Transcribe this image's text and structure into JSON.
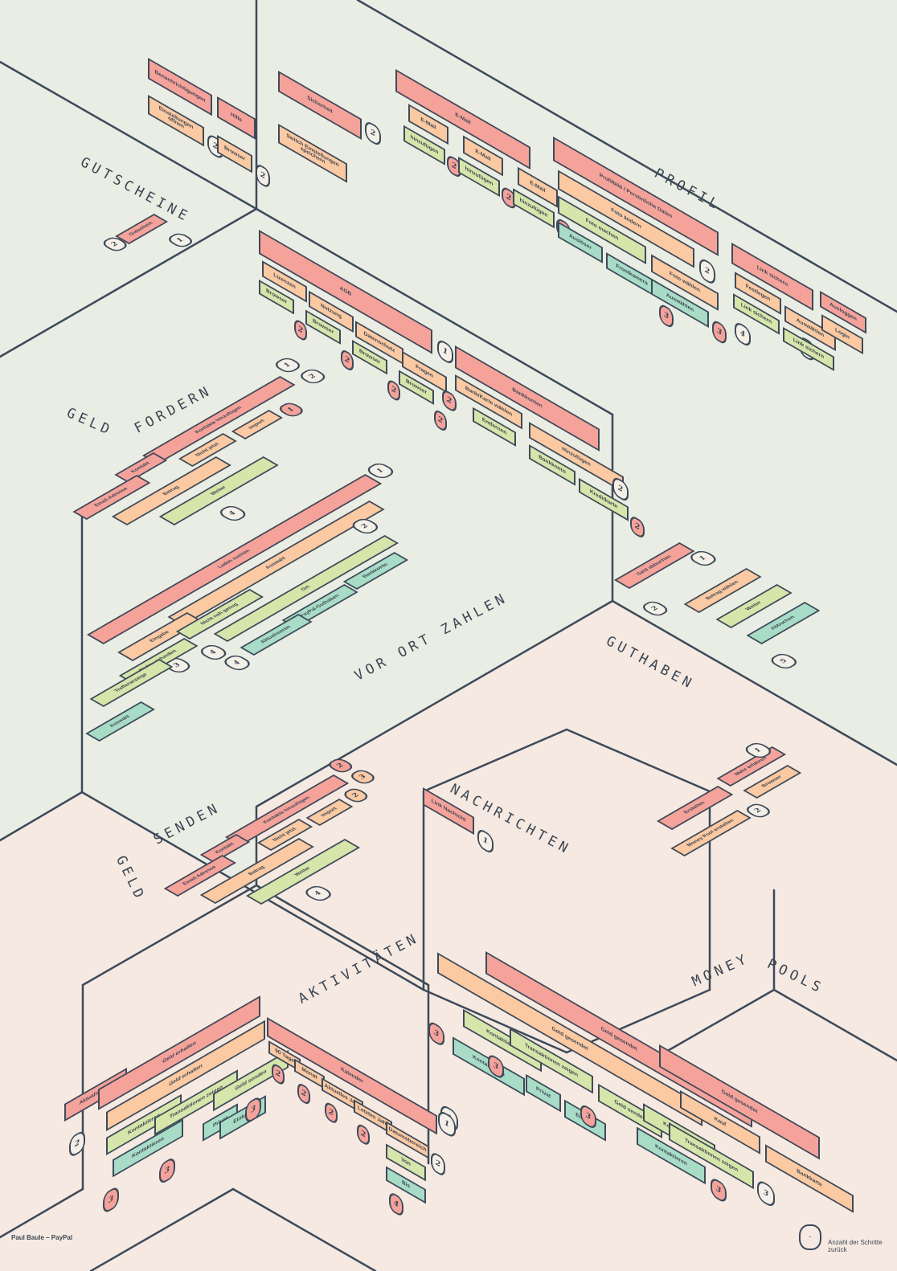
{
  "colors": {
    "bg_top": "#e9ede4",
    "bg_bottom": "#f5e9e2",
    "line": "#3d4a59",
    "salmon": "#f5a29b",
    "peach": "#fbc9a2",
    "green": "#d6e5aa",
    "teal": "#a8dcc7",
    "cream": "#f4f0e8",
    "text": "#3b4652"
  },
  "zones": {
    "gutscheine": "GUTSCHEINE",
    "profil": "PROFIL",
    "geld_fordern_1": "GELD",
    "geld_fordern_2": "FORDERN",
    "vor_ort_zahlen": "VOR ORT ZAHLEN",
    "guthaben": "GUTHABEN",
    "geld_senden_1": "GELD",
    "geld_senden_2": "SENDEN",
    "nachrichten": "NACHRICHTEN",
    "aktivitaeten": "AKTIVITÄTEN",
    "money_pools_1": "MONEY",
    "money_pools_2": "POOLS"
  },
  "footer": {
    "credit": "Paul Baule – PayPal",
    "legend_badge": "-",
    "legend_label": "Anzahl der Schritte zurück"
  },
  "groups": {
    "benachrichtigungen": {
      "items": [
        {
          "label": "Benachrichtigungen",
          "color": "salmon",
          "kind": "box"
        },
        {
          "label": "Einstellungen öffnen",
          "color": "peach",
          "kind": "box"
        },
        {
          "label": "2",
          "color": "cream",
          "kind": "badge"
        }
      ]
    },
    "hilfe": {
      "items": [
        {
          "label": "Hilfe",
          "color": "salmon",
          "kind": "box"
        },
        {
          "label": "Browser",
          "color": "peach",
          "kind": "box"
        },
        {
          "label": "2",
          "color": "cream",
          "kind": "badge"
        }
      ]
    },
    "sicherheit": {
      "items": [
        {
          "label": "Sicherheit",
          "color": "salmon",
          "kind": "box"
        },
        {
          "label": "Switch Einstellungen speichern",
          "color": "peach",
          "kind": "box"
        },
        {
          "label": "2",
          "color": "cream",
          "kind": "badge"
        }
      ]
    },
    "gutschein": {
      "items": [
        {
          "label": "2",
          "color": "cream",
          "kind": "badge"
        },
        {
          "label": "Gutschein",
          "color": "salmon",
          "kind": "box"
        },
        {
          "label": "1",
          "color": "cream",
          "kind": "badge"
        }
      ]
    },
    "profil_email": {
      "items": [
        {
          "label": "E-Mail",
          "color": "salmon",
          "kind": "box"
        },
        {
          "label": "E-Mail",
          "color": "peach",
          "kind": "box"
        },
        {
          "label": "hinzufügen",
          "color": "green",
          "kind": "box"
        },
        {
          "label": "2",
          "color": "salmon",
          "kind": "badge"
        },
        {
          "label": "E-Mail",
          "color": "peach",
          "kind": "box"
        },
        {
          "label": "hinzufügen",
          "color": "green",
          "kind": "box"
        },
        {
          "label": "2",
          "color": "salmon",
          "kind": "badge"
        },
        {
          "label": "E-Mail",
          "color": "peach",
          "kind": "box"
        },
        {
          "label": "hinzufügen",
          "color": "green",
          "kind": "box"
        },
        {
          "label": "2",
          "color": "salmon",
          "kind": "badge"
        }
      ]
    },
    "profil_daten": {
      "items": [
        {
          "label": "Profilbild / Persönliche Daten",
          "color": "salmon",
          "kind": "box"
        },
        {
          "label": "Foto ändern",
          "color": "peach",
          "kind": "box"
        },
        {
          "label": "2",
          "color": "cream",
          "kind": "badge"
        },
        {
          "label": "Foto machen",
          "color": "green",
          "kind": "box"
        },
        {
          "label": "Foto wählen",
          "color": "peach",
          "kind": "box"
        },
        {
          "label": "Auslöser",
          "color": "teal",
          "kind": "box"
        },
        {
          "label": "Frontkamera",
          "color": "teal",
          "kind": "box"
        },
        {
          "label": "3",
          "color": "salmon",
          "kind": "badge"
        },
        {
          "label": "Auswählen",
          "color": "teal",
          "kind": "box"
        },
        {
          "label": "3",
          "color": "salmon",
          "kind": "badge"
        }
      ]
    },
    "profil_link": {
      "items": [
        {
          "label": "Link sichern",
          "color": "salmon",
          "kind": "box"
        },
        {
          "label": "Festlegen",
          "color": "peach",
          "kind": "box"
        },
        {
          "label": "Auswählen",
          "color": "peach",
          "kind": "box"
        },
        {
          "label": "2",
          "color": "cream",
          "kind": "badge"
        },
        {
          "label": "Link sichern",
          "color": "green",
          "kind": "box"
        },
        {
          "label": "Link sichern",
          "color": "green",
          "kind": "box"
        },
        {
          "label": "4",
          "color": "cream",
          "kind": "badge"
        }
      ]
    },
    "ausloggen": {
      "items": [
        {
          "label": "Ausloggen",
          "color": "salmon",
          "kind": "box"
        },
        {
          "label": "Login",
          "color": "peach",
          "kind": "box"
        }
      ]
    },
    "agb": {
      "items": [
        {
          "label": "AGB",
          "color": "salmon",
          "kind": "box"
        },
        {
          "label": "Lizenzen",
          "color": "peach",
          "kind": "box"
        },
        {
          "label": "Browser",
          "color": "green",
          "kind": "box"
        },
        {
          "label": "2",
          "color": "salmon",
          "kind": "badge"
        },
        {
          "label": "Nutzung",
          "color": "peach",
          "kind": "box"
        },
        {
          "label": "Browser",
          "color": "green",
          "kind": "box"
        },
        {
          "label": "2",
          "color": "salmon",
          "kind": "badge"
        },
        {
          "label": "Datenschutz",
          "color": "peach",
          "kind": "box"
        },
        {
          "label": "Browser",
          "color": "green",
          "kind": "box"
        },
        {
          "label": "2",
          "color": "salmon",
          "kind": "badge"
        },
        {
          "label": "Fragen",
          "color": "peach",
          "kind": "box"
        },
        {
          "label": "Browser",
          "color": "green",
          "kind": "box"
        },
        {
          "label": "2",
          "color": "salmon",
          "kind": "badge"
        },
        {
          "label": "1",
          "color": "cream",
          "kind": "badge"
        }
      ]
    },
    "bankkonten": {
      "items": [
        {
          "label": "Bankkonten",
          "color": "salmon",
          "kind": "box"
        },
        {
          "label": "Bank/Karte wählen",
          "color": "peach",
          "kind": "box"
        },
        {
          "label": "2",
          "color": "salmon",
          "kind": "badge"
        },
        {
          "label": "Entfernen",
          "color": "green",
          "kind": "box"
        },
        {
          "label": "Hinzufügen",
          "color": "peach",
          "kind": "box"
        },
        {
          "label": "Bankkonto",
          "color": "green",
          "kind": "box"
        },
        {
          "label": "Kreditkarte",
          "color": "green",
          "kind": "box"
        },
        {
          "label": "2",
          "color": "salmon",
          "kind": "badge"
        },
        {
          "label": "2",
          "color": "cream",
          "kind": "badge"
        }
      ]
    },
    "geld_fordern": {
      "items": [
        {
          "label": "Kontakte hinzufügen",
          "color": "salmon",
          "kind": "box"
        },
        {
          "label": "1",
          "color": "cream",
          "kind": "badge"
        },
        {
          "label": "2",
          "color": "cream",
          "kind": "badge"
        },
        {
          "label": "Kontakt",
          "color": "salmon",
          "kind": "box"
        },
        {
          "label": "Nicht jetzt",
          "color": "peach",
          "kind": "box"
        },
        {
          "label": "Import",
          "color": "peach",
          "kind": "box"
        },
        {
          "label": "1",
          "color": "salmon",
          "kind": "badge"
        },
        {
          "label": "Email-Adresse",
          "color": "salmon",
          "kind": "box"
        },
        {
          "label": "Betrag",
          "color": "peach",
          "kind": "box"
        },
        {
          "label": "Weiter",
          "color": "green",
          "kind": "box"
        },
        {
          "label": "4",
          "color": "cream",
          "kind": "badge"
        }
      ]
    },
    "vor_ort": {
      "items": [
        {
          "label": "Laden suchen",
          "color": "salmon",
          "kind": "box"
        },
        {
          "label": "1",
          "color": "cream",
          "kind": "badge"
        },
        {
          "label": "Auswahl",
          "color": "peach",
          "kind": "box"
        },
        {
          "label": "2",
          "color": "cream",
          "kind": "badge"
        },
        {
          "label": "Ort",
          "color": "green",
          "kind": "box"
        },
        {
          "label": "Bankkonto",
          "color": "teal",
          "kind": "box"
        },
        {
          "label": "PayPal-Guthaben",
          "color": "teal",
          "kind": "box"
        },
        {
          "label": "Aktualisieren",
          "color": "teal",
          "kind": "box"
        },
        {
          "label": "4",
          "color": "cream",
          "kind": "badge"
        },
        {
          "label": "Eingabe",
          "color": "peach",
          "kind": "box"
        },
        {
          "label": "3",
          "color": "cream",
          "kind": "badge"
        },
        {
          "label": "Nichts gefunden",
          "color": "green",
          "kind": "box"
        },
        {
          "label": "Nicht nah genug",
          "color": "green",
          "kind": "box"
        },
        {
          "label": "4",
          "color": "cream",
          "kind": "badge"
        },
        {
          "label": "Trefferanzeige",
          "color": "green",
          "kind": "box"
        },
        {
          "label": "Auswahl",
          "color": "teal",
          "kind": "box"
        }
      ]
    },
    "guthaben": {
      "items": [
        {
          "label": "1",
          "color": "cream",
          "kind": "badge"
        },
        {
          "label": "Geld abbuchen",
          "color": "salmon",
          "kind": "box"
        },
        {
          "label": "2",
          "color": "cream",
          "kind": "badge"
        },
        {
          "label": "Betrag wählen",
          "color": "peach",
          "kind": "box"
        },
        {
          "label": "Weiter",
          "color": "green",
          "kind": "box"
        },
        {
          "label": "Abbuchen",
          "color": "teal",
          "kind": "box"
        },
        {
          "label": "5",
          "color": "cream",
          "kind": "badge"
        }
      ]
    },
    "geld_senden": {
      "items": [
        {
          "label": "Kontakte hinzufügen",
          "color": "salmon",
          "kind": "box"
        },
        {
          "label": "2",
          "color": "salmon",
          "kind": "badge"
        },
        {
          "label": "Kontakt",
          "color": "salmon",
          "kind": "box"
        },
        {
          "label": "Nicht jetzt",
          "color": "peach",
          "kind": "box"
        },
        {
          "label": "Import",
          "color": "peach",
          "kind": "box"
        },
        {
          "label": "2",
          "color": "peach",
          "kind": "badge"
        },
        {
          "label": "3",
          "color": "peach",
          "kind": "badge"
        },
        {
          "label": "Email-Adresse",
          "color": "salmon",
          "kind": "box"
        },
        {
          "label": "Betrag",
          "color": "peach",
          "kind": "box"
        },
        {
          "label": "Weiter",
          "color": "green",
          "kind": "box"
        },
        {
          "label": "4",
          "color": "cream",
          "kind": "badge"
        }
      ]
    },
    "nachrichten_link": {
      "items": [
        {
          "label": "Link Nachicht",
          "color": "salmon",
          "kind": "box"
        },
        {
          "label": "1",
          "color": "cream",
          "kind": "badge"
        }
      ]
    },
    "money_pools": {
      "items": [
        {
          "label": "Erstellen",
          "color": "salmon",
          "kind": "box"
        },
        {
          "label": "2",
          "color": "cream",
          "kind": "badge"
        },
        {
          "label": "Money Pool erstellen",
          "color": "peach",
          "kind": "box"
        },
        {
          "label": "Mehr erfahren",
          "color": "salmon",
          "kind": "box"
        },
        {
          "label": "Browser",
          "color": "peach",
          "kind": "box"
        },
        {
          "label": "1",
          "color": "cream",
          "kind": "badge"
        }
      ]
    },
    "aktiv_links": {
      "items": [
        {
          "label": "Aktualisieren",
          "color": "salmon",
          "kind": "box"
        },
        {
          "label": "2",
          "color": "cream",
          "kind": "badge"
        },
        {
          "label": "Geld erhalten",
          "color": "salmon",
          "kind": "box"
        },
        {
          "label": "Geld erhalten",
          "color": "peach",
          "kind": "box"
        },
        {
          "label": "Kontaktieren",
          "color": "green",
          "kind": "box"
        },
        {
          "label": "Kontaktieren",
          "color": "teal",
          "kind": "box"
        },
        {
          "label": "3",
          "color": "salmon",
          "kind": "badge"
        },
        {
          "label": "Transaktionen zeigen",
          "color": "green",
          "kind": "box"
        },
        {
          "label": "3",
          "color": "salmon",
          "kind": "badge"
        },
        {
          "label": "Geld senden",
          "color": "green",
          "kind": "box"
        },
        {
          "label": "Privat",
          "color": "teal",
          "kind": "box"
        },
        {
          "label": "Einkauf",
          "color": "teal",
          "kind": "box"
        },
        {
          "label": "3",
          "color": "salmon",
          "kind": "badge"
        }
      ]
    },
    "kalender": {
      "items": [
        {
          "label": "Kalender",
          "color": "salmon",
          "kind": "box"
        },
        {
          "label": "1",
          "color": "cream",
          "kind": "badge"
        },
        {
          "label": "90 Tage",
          "color": "peach",
          "kind": "box"
        },
        {
          "label": "2",
          "color": "salmon",
          "kind": "badge"
        },
        {
          "label": "Monat",
          "color": "peach",
          "kind": "box"
        },
        {
          "label": "2",
          "color": "salmon",
          "kind": "badge"
        },
        {
          "label": "Aktuelles Jahr",
          "color": "peach",
          "kind": "box"
        },
        {
          "label": "2",
          "color": "salmon",
          "kind": "badge"
        },
        {
          "label": "Letztes Jahr",
          "color": "peach",
          "kind": "box"
        },
        {
          "label": "2",
          "color": "salmon",
          "kind": "badge"
        },
        {
          "label": "Datumsbereich",
          "color": "peach",
          "kind": "box"
        },
        {
          "label": "2",
          "color": "cream",
          "kind": "badge"
        },
        {
          "label": "Von",
          "color": "green",
          "kind": "box"
        },
        {
          "label": "Bis",
          "color": "teal",
          "kind": "box"
        },
        {
          "label": "4",
          "color": "salmon",
          "kind": "badge"
        }
      ]
    },
    "geld_gesendet_1": {
      "items": [
        {
          "label": "Geld gesendet",
          "color": "salmon",
          "kind": "box"
        },
        {
          "label": "Geld gesendet",
          "color": "peach",
          "kind": "box"
        },
        {
          "label": "Kontaktieren",
          "color": "green",
          "kind": "box"
        },
        {
          "label": "Kontaktieren",
          "color": "teal",
          "kind": "box"
        },
        {
          "label": "3",
          "color": "salmon",
          "kind": "badge"
        },
        {
          "label": "3",
          "color": "salmon",
          "kind": "badge"
        },
        {
          "label": "Transaktionen zeigen",
          "color": "green",
          "kind": "box"
        },
        {
          "label": "Privat",
          "color": "teal",
          "kind": "box"
        },
        {
          "label": "Einkauf",
          "color": "teal",
          "kind": "box"
        },
        {
          "label": "Geld senden",
          "color": "green",
          "kind": "box"
        },
        {
          "label": "3",
          "color": "salmon",
          "kind": "badge"
        },
        {
          "label": "Kontaktieren",
          "color": "green",
          "kind": "box"
        },
        {
          "label": "Kontaktieren",
          "color": "teal",
          "kind": "box"
        },
        {
          "label": "3",
          "color": "salmon",
          "kind": "badge"
        },
        {
          "label": "1",
          "color": "cream",
          "kind": "badge"
        }
      ]
    },
    "geld_gesendet_2": {
      "items": [
        {
          "label": "Geld gesendet",
          "color": "salmon",
          "kind": "box"
        },
        {
          "label": "Kauf",
          "color": "peach",
          "kind": "box"
        },
        {
          "label": "Transaktionen zeigen",
          "color": "green",
          "kind": "box"
        },
        {
          "label": "3",
          "color": "cream",
          "kind": "badge"
        },
        {
          "label": "Bankkarte",
          "color": "peach",
          "kind": "box"
        }
      ]
    }
  }
}
